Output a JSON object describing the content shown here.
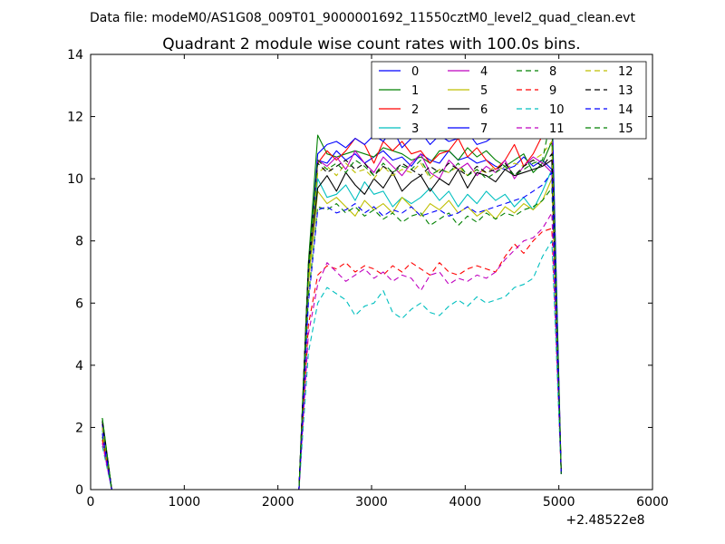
{
  "chart_data": {
    "type": "line",
    "suptitle": "Data file: modeM0/AS1G08_009T01_9000001692_11550cztM0_level2_quad_clean.evt",
    "title": "Quadrant 2 module wise count rates with 100.0s bins.",
    "xlabel": "",
    "ylabel": "",
    "x_offset_label": "+2.48522e8",
    "xlim": [
      0,
      6000
    ],
    "ylim": [
      0,
      14
    ],
    "xticks": [
      0,
      1000,
      2000,
      3000,
      4000,
      5000,
      6000
    ],
    "yticks": [
      0,
      2,
      4,
      6,
      8,
      10,
      12,
      14
    ],
    "grid": false,
    "legend": {
      "position": "top-right",
      "columns": 4
    },
    "x": [
      125,
      225,
      325,
      425,
      525,
      625,
      725,
      825,
      925,
      1025,
      1125,
      1225,
      1325,
      1425,
      1525,
      1625,
      1725,
      1825,
      1925,
      2025,
      2125,
      2225,
      2325,
      2425,
      2525,
      2625,
      2725,
      2825,
      2925,
      3025,
      3125,
      3225,
      3325,
      3425,
      3525,
      3625,
      3725,
      3825,
      3925,
      4025,
      4125,
      4225,
      4325,
      4425,
      4525,
      4625,
      4725,
      4825,
      4925,
      5025
    ],
    "series": [
      {
        "name": "0",
        "color": "#0000ff",
        "dash": "solid",
        "values": [
          2.0,
          0,
          0,
          0,
          0,
          0,
          0,
          0,
          0,
          0,
          0,
          0,
          0,
          0,
          0,
          0,
          0,
          0,
          0,
          0,
          0,
          0,
          7.0,
          10.6,
          10.5,
          10.9,
          10.6,
          10.8,
          10.5,
          10.7,
          10.9,
          10.6,
          10.7,
          10.4,
          10.8,
          10.6,
          10.5,
          10.9,
          10.6,
          10.7,
          10.5,
          10.6,
          10.4,
          10.3,
          10.4,
          10.7,
          10.4,
          10.6,
          10.3,
          0.5
        ]
      },
      {
        "name": "1",
        "color": "#008000",
        "dash": "solid",
        "values": [
          2.3,
          0,
          0,
          0,
          0,
          0,
          0,
          0,
          0,
          0,
          0,
          0,
          0,
          0,
          0,
          0,
          0,
          0,
          0,
          0,
          0,
          0,
          7.3,
          11.4,
          10.8,
          10.7,
          10.8,
          10.9,
          10.8,
          10.7,
          11.0,
          10.9,
          10.8,
          10.6,
          10.7,
          10.5,
          10.9,
          10.9,
          10.6,
          11.0,
          10.7,
          10.9,
          10.6,
          10.4,
          10.6,
          10.8,
          10.2,
          10.5,
          11.2,
          0.5
        ]
      },
      {
        "name": "2",
        "color": "#ff0000",
        "dash": "solid",
        "values": [
          2.1,
          0,
          0,
          0,
          0,
          0,
          0,
          0,
          0,
          0,
          0,
          0,
          0,
          0,
          0,
          0,
          0,
          0,
          0,
          0,
          0,
          0,
          7.1,
          10.5,
          10.9,
          10.6,
          10.9,
          11.3,
          11.1,
          10.5,
          11.2,
          10.9,
          11.2,
          10.8,
          10.9,
          10.5,
          10.8,
          10.9,
          11.3,
          10.7,
          11.0,
          10.6,
          10.3,
          10.6,
          11.1,
          10.4,
          10.8,
          11.4,
          11.8,
          0.6
        ]
      },
      {
        "name": "3",
        "color": "#00bfbf",
        "dash": "solid",
        "values": [
          1.9,
          0,
          0,
          0,
          0,
          0,
          0,
          0,
          0,
          0,
          0,
          0,
          0,
          0,
          0,
          0,
          0,
          0,
          0,
          0,
          0,
          0,
          6.8,
          10.0,
          9.4,
          9.5,
          9.8,
          9.3,
          9.9,
          9.5,
          9.6,
          9.1,
          9.4,
          9.2,
          9.4,
          9.7,
          9.3,
          9.6,
          9.1,
          9.5,
          9.2,
          9.6,
          9.3,
          9.5,
          9.1,
          9.4,
          9.0,
          9.6,
          10.3,
          0.5
        ]
      },
      {
        "name": "4",
        "color": "#bf00bf",
        "dash": "solid",
        "values": [
          2.0,
          0,
          0,
          0,
          0,
          0,
          0,
          0,
          0,
          0,
          0,
          0,
          0,
          0,
          0,
          0,
          0,
          0,
          0,
          0,
          0,
          0,
          6.9,
          10.6,
          10.4,
          10.7,
          10.3,
          10.9,
          10.5,
          10.2,
          10.7,
          10.4,
          10.1,
          10.5,
          10.8,
          10.2,
          10.0,
          10.6,
          10.3,
          10.5,
          10.1,
          10.4,
          10.2,
          10.6,
          10.0,
          10.4,
          10.7,
          10.5,
          10.2,
          0.5
        ]
      },
      {
        "name": "5",
        "color": "#bfbf00",
        "dash": "solid",
        "values": [
          1.8,
          0,
          0,
          0,
          0,
          0,
          0,
          0,
          0,
          0,
          0,
          0,
          0,
          0,
          0,
          0,
          0,
          0,
          0,
          0,
          0,
          0,
          6.6,
          9.6,
          9.2,
          9.4,
          9.1,
          8.8,
          9.3,
          9.0,
          9.2,
          8.9,
          9.4,
          9.1,
          8.8,
          9.2,
          9.0,
          9.3,
          8.9,
          9.1,
          8.8,
          9.0,
          8.7,
          9.1,
          8.9,
          9.2,
          9.0,
          9.3,
          10.0,
          0.5
        ]
      },
      {
        "name": "6",
        "color": "#000000",
        "dash": "solid",
        "values": [
          2.2,
          0,
          0,
          0,
          0,
          0,
          0,
          0,
          0,
          0,
          0,
          0,
          0,
          0,
          0,
          0,
          0,
          0,
          0,
          0,
          0,
          0,
          7.0,
          9.7,
          10.1,
          9.6,
          10.2,
          9.8,
          9.5,
          10.0,
          9.7,
          10.2,
          9.6,
          9.9,
          10.1,
          9.6,
          10.0,
          9.8,
          10.3,
          9.7,
          10.2,
          10.1,
          9.9,
          10.3,
          10.1,
          10.2,
          10.3,
          10.4,
          10.6,
          0.5
        ]
      },
      {
        "name": "7",
        "color": "#0000ff",
        "dash": "solid",
        "values": [
          2.1,
          0,
          0,
          0,
          0,
          0,
          0,
          0,
          0,
          0,
          0,
          0,
          0,
          0,
          0,
          0,
          0,
          0,
          0,
          0,
          0,
          0,
          7.0,
          10.8,
          11.1,
          11.2,
          11.0,
          11.3,
          11.1,
          11.4,
          11.2,
          11.6,
          11.0,
          11.3,
          11.5,
          11.1,
          11.4,
          11.2,
          11.3,
          11.5,
          11.1,
          11.2,
          11.4,
          11.3,
          11.8,
          11.7,
          11.9,
          12.4,
          12.6,
          0.5
        ]
      },
      {
        "name": "8",
        "color": "#008000",
        "dash": "dashed",
        "values": [
          1.7,
          0,
          0,
          0,
          0,
          0,
          0,
          0,
          0,
          0,
          0,
          0,
          0,
          0,
          0,
          0,
          0,
          0,
          0,
          0,
          0,
          0,
          6.2,
          9.1,
          9.0,
          9.2,
          8.9,
          9.1,
          8.8,
          9.0,
          8.7,
          8.9,
          8.6,
          8.8,
          8.9,
          8.5,
          8.7,
          8.9,
          8.5,
          8.8,
          8.6,
          8.9,
          8.7,
          8.9,
          8.8,
          9.0,
          9.1,
          9.3,
          9.7,
          0.5
        ]
      },
      {
        "name": "9",
        "color": "#ff0000",
        "dash": "dashed",
        "values": [
          1.6,
          0,
          0,
          0,
          0,
          0,
          0,
          0,
          0,
          0,
          0,
          0,
          0,
          0,
          0,
          0,
          0,
          0,
          0,
          0,
          0,
          0,
          5.3,
          6.9,
          7.2,
          7.1,
          7.3,
          7.0,
          7.2,
          7.1,
          6.9,
          7.2,
          7.0,
          7.3,
          7.1,
          6.9,
          7.3,
          7.0,
          6.9,
          7.1,
          7.2,
          7.1,
          7.0,
          7.5,
          7.9,
          7.6,
          8.0,
          8.3,
          8.4,
          0.5
        ]
      },
      {
        "name": "10",
        "color": "#00bfbf",
        "dash": "dashed",
        "values": [
          1.4,
          0,
          0,
          0,
          0,
          0,
          0,
          0,
          0,
          0,
          0,
          0,
          0,
          0,
          0,
          0,
          0,
          0,
          0,
          0,
          0,
          0,
          4.4,
          6.0,
          6.5,
          6.3,
          6.1,
          5.6,
          5.9,
          6.0,
          6.4,
          5.7,
          5.5,
          5.8,
          6.0,
          5.7,
          5.6,
          5.9,
          6.1,
          5.9,
          6.2,
          6.0,
          6.1,
          6.2,
          6.5,
          6.6,
          6.8,
          7.5,
          8.0,
          0.5
        ]
      },
      {
        "name": "11",
        "color": "#bf00bf",
        "dash": "dashed",
        "values": [
          1.5,
          0,
          0,
          0,
          0,
          0,
          0,
          0,
          0,
          0,
          0,
          0,
          0,
          0,
          0,
          0,
          0,
          0,
          0,
          0,
          0,
          0,
          5.0,
          6.6,
          7.3,
          7.0,
          6.7,
          6.9,
          7.1,
          6.8,
          7.0,
          6.7,
          6.9,
          6.8,
          6.4,
          6.9,
          7.0,
          6.6,
          6.8,
          6.7,
          6.9,
          6.8,
          7.0,
          7.4,
          7.7,
          8.0,
          8.1,
          8.4,
          8.9,
          0.5
        ]
      },
      {
        "name": "12",
        "color": "#bfbf00",
        "dash": "dashed",
        "values": [
          2.0,
          0,
          0,
          0,
          0,
          0,
          0,
          0,
          0,
          0,
          0,
          0,
          0,
          0,
          0,
          0,
          0,
          0,
          0,
          0,
          0,
          0,
          6.9,
          10.2,
          10.4,
          10.1,
          10.5,
          10.2,
          10.3,
          10.0,
          10.4,
          10.1,
          10.3,
          10.2,
          10.5,
          10.0,
          10.3,
          10.2,
          10.4,
          10.1,
          10.3,
          10.2,
          10.4,
          10.3,
          10.5,
          10.4,
          10.6,
          10.8,
          11.2,
          0.5
        ]
      },
      {
        "name": "13",
        "color": "#000000",
        "dash": "dashed",
        "values": [
          2.2,
          0,
          0,
          0,
          0,
          0,
          0,
          0,
          0,
          0,
          0,
          0,
          0,
          0,
          0,
          0,
          0,
          0,
          0,
          0,
          0,
          0,
          7.2,
          10.5,
          10.2,
          10.4,
          10.6,
          10.3,
          10.5,
          10.1,
          10.4,
          10.2,
          10.5,
          10.3,
          10.1,
          10.4,
          10.2,
          10.5,
          10.3,
          10.1,
          10.4,
          10.2,
          10.3,
          10.5,
          10.1,
          10.4,
          10.6,
          10.4,
          10.8,
          0.5
        ]
      },
      {
        "name": "14",
        "color": "#0000ff",
        "dash": "dashed",
        "values": [
          1.8,
          0,
          0,
          0,
          0,
          0,
          0,
          0,
          0,
          0,
          0,
          0,
          0,
          0,
          0,
          0,
          0,
          0,
          0,
          0,
          0,
          0,
          6.0,
          9.0,
          9.1,
          8.9,
          9.0,
          9.2,
          8.9,
          9.1,
          8.8,
          9.0,
          8.9,
          9.1,
          8.8,
          8.9,
          9.0,
          8.8,
          8.9,
          9.1,
          8.9,
          9.0,
          9.1,
          9.2,
          9.3,
          9.4,
          9.6,
          9.8,
          10.2,
          0.5
        ]
      },
      {
        "name": "15",
        "color": "#008000",
        "dash": "dashed",
        "values": [
          2.3,
          0,
          0,
          0,
          0,
          0,
          0,
          0,
          0,
          0,
          0,
          0,
          0,
          0,
          0,
          0,
          0,
          0,
          0,
          0,
          0,
          0,
          7.1,
          10.6,
          10.3,
          10.5,
          10.2,
          10.6,
          10.4,
          10.1,
          10.5,
          10.2,
          10.4,
          10.3,
          10.6,
          10.1,
          10.3,
          10.2,
          10.5,
          10.1,
          10.3,
          10.0,
          10.2,
          10.4,
          10.1,
          10.3,
          10.5,
          10.6,
          12.1,
          0.5
        ]
      }
    ]
  }
}
